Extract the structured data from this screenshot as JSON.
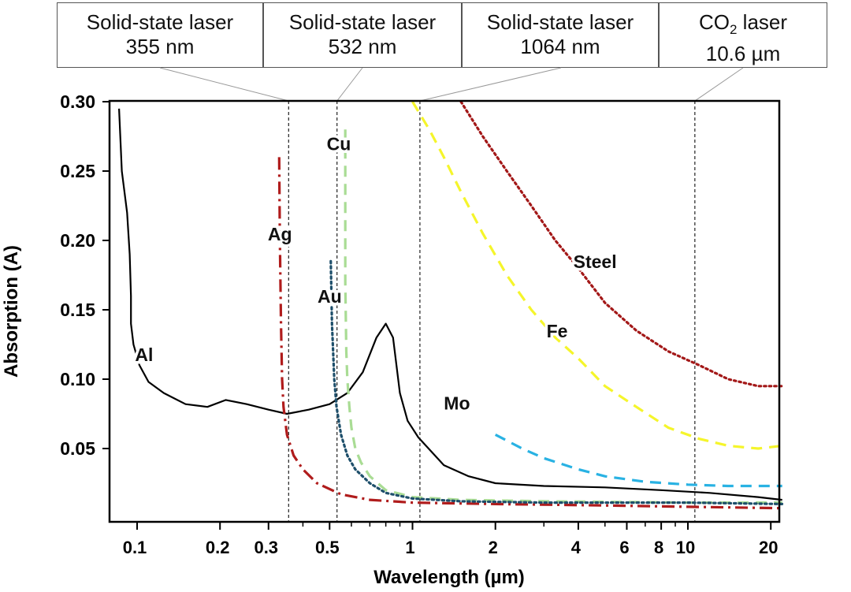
{
  "lasers": [
    {
      "line1": "Solid-state laser",
      "line2": "355 nm",
      "wavelength": 0.355
    },
    {
      "line1": "Solid-state laser",
      "line2": "532 nm",
      "wavelength": 0.532
    },
    {
      "line1": "Solid-state laser",
      "line2": "1064 nm",
      "wavelength": 1.064
    },
    {
      "line1_main": "CO",
      "line1_sub": "2",
      "line1_tail": " laser",
      "line2": "10.6 µm",
      "wavelength": 10.6
    }
  ],
  "chart_data": {
    "type": "line",
    "title": "",
    "xlabel": "Wavelength (µm)",
    "ylabel": "Absorption (A)",
    "xscale": "log",
    "xlim": [
      0.08,
      23
    ],
    "ylim": [
      0,
      0.3
    ],
    "xticks": [
      0.1,
      0.2,
      0.3,
      0.5,
      1,
      2,
      4,
      6,
      8,
      10,
      20
    ],
    "xtick_labels": [
      "0.1",
      "0.2",
      "0.3",
      "0.5",
      "1",
      "2",
      "4",
      "6",
      "8",
      "10",
      "20"
    ],
    "yticks": [
      0.05,
      0.1,
      0.15,
      0.2,
      0.25,
      0.3
    ],
    "ytick_labels": [
      "0.05",
      "0.10",
      "0.15",
      "0.20",
      "0.25",
      "0.30"
    ],
    "grid": false,
    "series": [
      {
        "name": "Al",
        "color": "#000000",
        "style": "solid",
        "label_at": [
          0.106,
          0.113
        ],
        "x": [
          0.086,
          0.088,
          0.092,
          0.094,
          0.095,
          0.095,
          0.097,
          0.102,
          0.11,
          0.125,
          0.15,
          0.18,
          0.21,
          0.25,
          0.3,
          0.35,
          0.42,
          0.5,
          0.58,
          0.66,
          0.74,
          0.8,
          0.85,
          0.9,
          0.96,
          1.05,
          1.3,
          1.6,
          2.0,
          3.0,
          5.0,
          8.0,
          12.0,
          18.0,
          22.0
        ],
        "y": [
          0.295,
          0.25,
          0.22,
          0.19,
          0.16,
          0.14,
          0.125,
          0.11,
          0.098,
          0.09,
          0.082,
          0.08,
          0.085,
          0.082,
          0.078,
          0.075,
          0.078,
          0.082,
          0.09,
          0.105,
          0.13,
          0.14,
          0.13,
          0.09,
          0.07,
          0.058,
          0.038,
          0.03,
          0.025,
          0.023,
          0.022,
          0.02,
          0.018,
          0.015,
          0.013
        ]
      },
      {
        "name": "Ag",
        "color": "#b01c1c",
        "style": "dashdot",
        "label_at": [
          0.33,
          0.2
        ],
        "x": [
          0.328,
          0.33,
          0.333,
          0.336,
          0.34,
          0.35,
          0.37,
          0.4,
          0.45,
          0.55,
          0.7,
          1.0,
          2.0,
          5.0,
          10.0,
          22.0
        ],
        "y": [
          0.26,
          0.2,
          0.14,
          0.1,
          0.08,
          0.06,
          0.045,
          0.035,
          0.025,
          0.017,
          0.013,
          0.011,
          0.01,
          0.009,
          0.008,
          0.007
        ],
        "gap": [
          0.2,
          0.24
        ]
      },
      {
        "name": "Cu",
        "color": "#a9dc94",
        "style": "dashed",
        "label_at": [
          0.54,
          0.265
        ],
        "x": [
          0.57,
          0.57,
          0.575,
          0.58,
          0.59,
          0.6,
          0.62,
          0.65,
          0.7,
          0.8,
          1.0,
          1.5,
          3.0,
          10.0,
          22.0
        ],
        "y": [
          0.28,
          0.17,
          0.12,
          0.1,
          0.08,
          0.065,
          0.05,
          0.04,
          0.03,
          0.02,
          0.015,
          0.013,
          0.012,
          0.011,
          0.011
        ],
        "gap": [
          0.17,
          0.265
        ]
      },
      {
        "name": "Au",
        "color": "#1e4f6b",
        "style": "dotted",
        "label_at": [
          0.5,
          0.155
        ],
        "x": [
          0.505,
          0.51,
          0.52,
          0.53,
          0.55,
          0.58,
          0.62,
          0.7,
          0.8,
          1.0,
          1.5,
          3.0,
          10.0,
          22.0
        ],
        "y": [
          0.185,
          0.14,
          0.1,
          0.08,
          0.06,
          0.045,
          0.035,
          0.025,
          0.018,
          0.014,
          0.012,
          0.011,
          0.011,
          0.01
        ],
        "gap": [
          0.14,
          0.17
        ]
      },
      {
        "name": "Mo",
        "color": "#29b2e3",
        "style": "dashed",
        "label_at": [
          1.45,
          0.078
        ],
        "x": [
          2.0,
          2.5,
          3.0,
          4.0,
          5.0,
          7.0,
          10.0,
          14.0,
          18.0,
          22.0
        ],
        "y": [
          0.06,
          0.05,
          0.043,
          0.035,
          0.03,
          0.026,
          0.024,
          0.023,
          0.023,
          0.023
        ]
      },
      {
        "name": "Fe",
        "color": "#f5f52b",
        "style": "dashed",
        "label_at": [
          3.35,
          0.13
        ],
        "x": [
          1.0,
          1.15,
          1.3,
          1.5,
          1.8,
          2.2,
          2.7,
          3.3,
          4.0,
          5.0,
          6.5,
          8.5,
          11.0,
          14.0,
          18.0,
          22.0
        ],
        "y": [
          0.3,
          0.28,
          0.26,
          0.235,
          0.205,
          0.175,
          0.15,
          0.13,
          0.115,
          0.095,
          0.08,
          0.065,
          0.057,
          0.052,
          0.05,
          0.052
        ]
      },
      {
        "name": "Steel",
        "color": "#a31818",
        "style": "dotted",
        "label_at": [
          4.6,
          0.18
        ],
        "x": [
          1.5,
          1.8,
          2.2,
          2.7,
          3.3,
          4.0,
          5.0,
          6.5,
          8.5,
          11.0,
          14.0,
          18.0,
          22.0
        ],
        "y": [
          0.3,
          0.275,
          0.25,
          0.225,
          0.2,
          0.18,
          0.155,
          0.135,
          0.12,
          0.11,
          0.1,
          0.095,
          0.095
        ]
      }
    ]
  }
}
